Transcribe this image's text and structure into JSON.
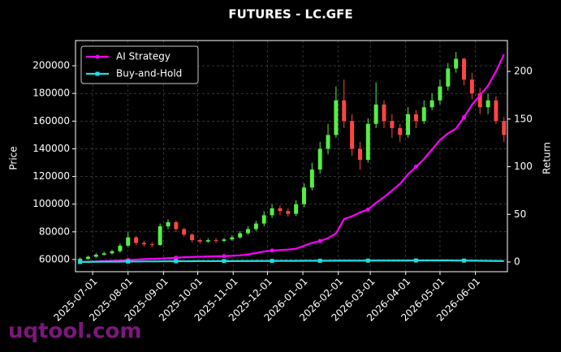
{
  "chart_data": {
    "type": "candlestick-with-returns",
    "title": "FUTURES - LC.GFE",
    "ylabel": "Price",
    "y2label": "Return",
    "watermark": "uqtool.com",
    "x": [
      "2025-06-20",
      "2025-06-27",
      "2025-07-04",
      "2025-07-11",
      "2025-07-18",
      "2025-07-25",
      "2025-08-01",
      "2025-08-08",
      "2025-08-15",
      "2025-08-22",
      "2025-08-29",
      "2025-09-05",
      "2025-09-12",
      "2025-09-19",
      "2025-09-26",
      "2025-10-03",
      "2025-10-10",
      "2025-10-17",
      "2025-10-24",
      "2025-10-31",
      "2025-11-07",
      "2025-11-14",
      "2025-11-21",
      "2025-11-28",
      "2025-12-05",
      "2025-12-12",
      "2025-12-19",
      "2025-12-26",
      "2026-01-02",
      "2026-01-09",
      "2026-01-16",
      "2026-01-23",
      "2026-01-30",
      "2026-02-06",
      "2026-02-13",
      "2026-02-20",
      "2026-02-27",
      "2026-03-06",
      "2026-03-13",
      "2026-03-20",
      "2026-03-27",
      "2026-04-03",
      "2026-04-10",
      "2026-04-17",
      "2026-04-24",
      "2026-05-01",
      "2026-05-08",
      "2026-05-15",
      "2026-05-22",
      "2026-05-29",
      "2026-06-05",
      "2026-06-12",
      "2026-06-19",
      "2026-06-26"
    ],
    "open": [
      59500,
      60500,
      62000,
      63500,
      64500,
      66000,
      70000,
      76000,
      72000,
      71000,
      70500,
      84000,
      87000,
      82000,
      78000,
      74000,
      73000,
      74000,
      73500,
      74500,
      76000,
      79000,
      82000,
      86000,
      92000,
      97000,
      95000,
      93000,
      100000,
      112000,
      125000,
      140000,
      150000,
      175000,
      160000,
      140000,
      132000,
      158000,
      172000,
      160000,
      155000,
      150000,
      165000,
      160000,
      170000,
      175000,
      185000,
      198000,
      205000,
      190000,
      180000,
      170000,
      175000,
      160000
    ],
    "high": [
      61500,
      62800,
      64500,
      65500,
      67000,
      71500,
      80000,
      77000,
      73500,
      72500,
      86000,
      89000,
      88000,
      83000,
      79000,
      75000,
      75500,
      75500,
      75500,
      77500,
      80500,
      84000,
      88000,
      95000,
      100000,
      99000,
      97000,
      103000,
      115000,
      130000,
      145000,
      158000,
      185000,
      190000,
      165000,
      145000,
      162000,
      188000,
      175000,
      165000,
      158000,
      170000,
      168000,
      175000,
      180000,
      190000,
      202000,
      210000,
      206000,
      195000,
      184000,
      180000,
      178000,
      163000
    ],
    "low": [
      58800,
      59800,
      61200,
      62800,
      63800,
      65000,
      69000,
      70500,
      69500,
      69000,
      70000,
      82000,
      80000,
      76500,
      72500,
      71500,
      72000,
      72000,
      72500,
      73500,
      75000,
      78000,
      80500,
      84000,
      90000,
      92000,
      91000,
      91500,
      98000,
      110000,
      122000,
      136000,
      148000,
      155000,
      135000,
      125000,
      130000,
      155000,
      155000,
      148000,
      145000,
      148000,
      155000,
      158000,
      168000,
      172000,
      182000,
      195000,
      186000,
      176000,
      165000,
      165000,
      158000,
      145000
    ],
    "close": [
      60500,
      62000,
      63500,
      64500,
      66000,
      70000,
      76000,
      72000,
      71000,
      70500,
      84000,
      87000,
      82000,
      78000,
      74000,
      73000,
      74000,
      73500,
      74500,
      76000,
      79000,
      82000,
      86000,
      92000,
      97000,
      95000,
      93000,
      100000,
      112000,
      125000,
      140000,
      150000,
      175000,
      160000,
      140000,
      132000,
      158000,
      172000,
      160000,
      155000,
      150000,
      165000,
      160000,
      170000,
      175000,
      185000,
      198000,
      205000,
      190000,
      180000,
      170000,
      175000,
      160000,
      150000
    ],
    "up_color": "#55ee44",
    "down_color": "#ff4444",
    "series": [
      {
        "name": "AI Strategy",
        "color": "#ff00ff",
        "axis": "y2",
        "marker": "circle",
        "values": [
          0,
          0.3,
          0.6,
          0.9,
          1.2,
          1.5,
          2,
          2.5,
          3,
          3.3,
          3.6,
          4,
          4.5,
          5,
          5.2,
          5.5,
          5.8,
          6,
          6.2,
          6.5,
          7,
          8,
          9.5,
          11,
          12,
          12.5,
          13,
          14,
          17,
          20,
          22,
          25,
          30,
          45,
          48,
          52,
          55,
          62,
          68,
          75,
          82,
          92,
          100,
          108,
          118,
          128,
          135,
          140,
          152,
          165,
          175,
          185,
          200,
          218
        ]
      },
      {
        "name": "Buy-and-Hold",
        "color": "#22dddd",
        "axis": "y2",
        "marker": "square",
        "values": [
          0,
          0.1,
          0.2,
          0.3,
          0.3,
          0.4,
          0.5,
          0.5,
          0.6,
          0.6,
          0.7,
          0.7,
          0.8,
          0.8,
          0.8,
          0.9,
          0.9,
          0.9,
          1,
          1,
          1,
          1,
          1.1,
          1.1,
          1.1,
          1.2,
          1.2,
          1.2,
          1.3,
          1.3,
          1.3,
          1.3,
          1.4,
          1.4,
          1.4,
          1.4,
          1.5,
          1.5,
          1.5,
          1.5,
          1.5,
          1.5,
          1.6,
          1.6,
          1.6,
          1.6,
          1.6,
          1.5,
          1.5,
          1.4,
          1.3,
          1.2,
          1.1,
          1
        ]
      }
    ],
    "markevery": 6,
    "xlim": [
      "2025-06-16",
      "2026-06-29"
    ],
    "xticks": [
      "2025-07-01",
      "2025-08-01",
      "2025-09-01",
      "2025-10-01",
      "2025-11-01",
      "2025-12-01",
      "2026-01-01",
      "2026-02-01",
      "2026-03-01",
      "2026-04-01",
      "2026-05-01",
      "2026-06-01"
    ],
    "ylim": [
      51200,
      218200
    ],
    "yticks": [
      60000,
      80000,
      100000,
      120000,
      140000,
      160000,
      180000,
      200000
    ],
    "y2lim": [
      -10.2,
      232.4
    ],
    "y2ticks": [
      0,
      50,
      100,
      150,
      200
    ],
    "grid": true,
    "legend": "upper left"
  }
}
